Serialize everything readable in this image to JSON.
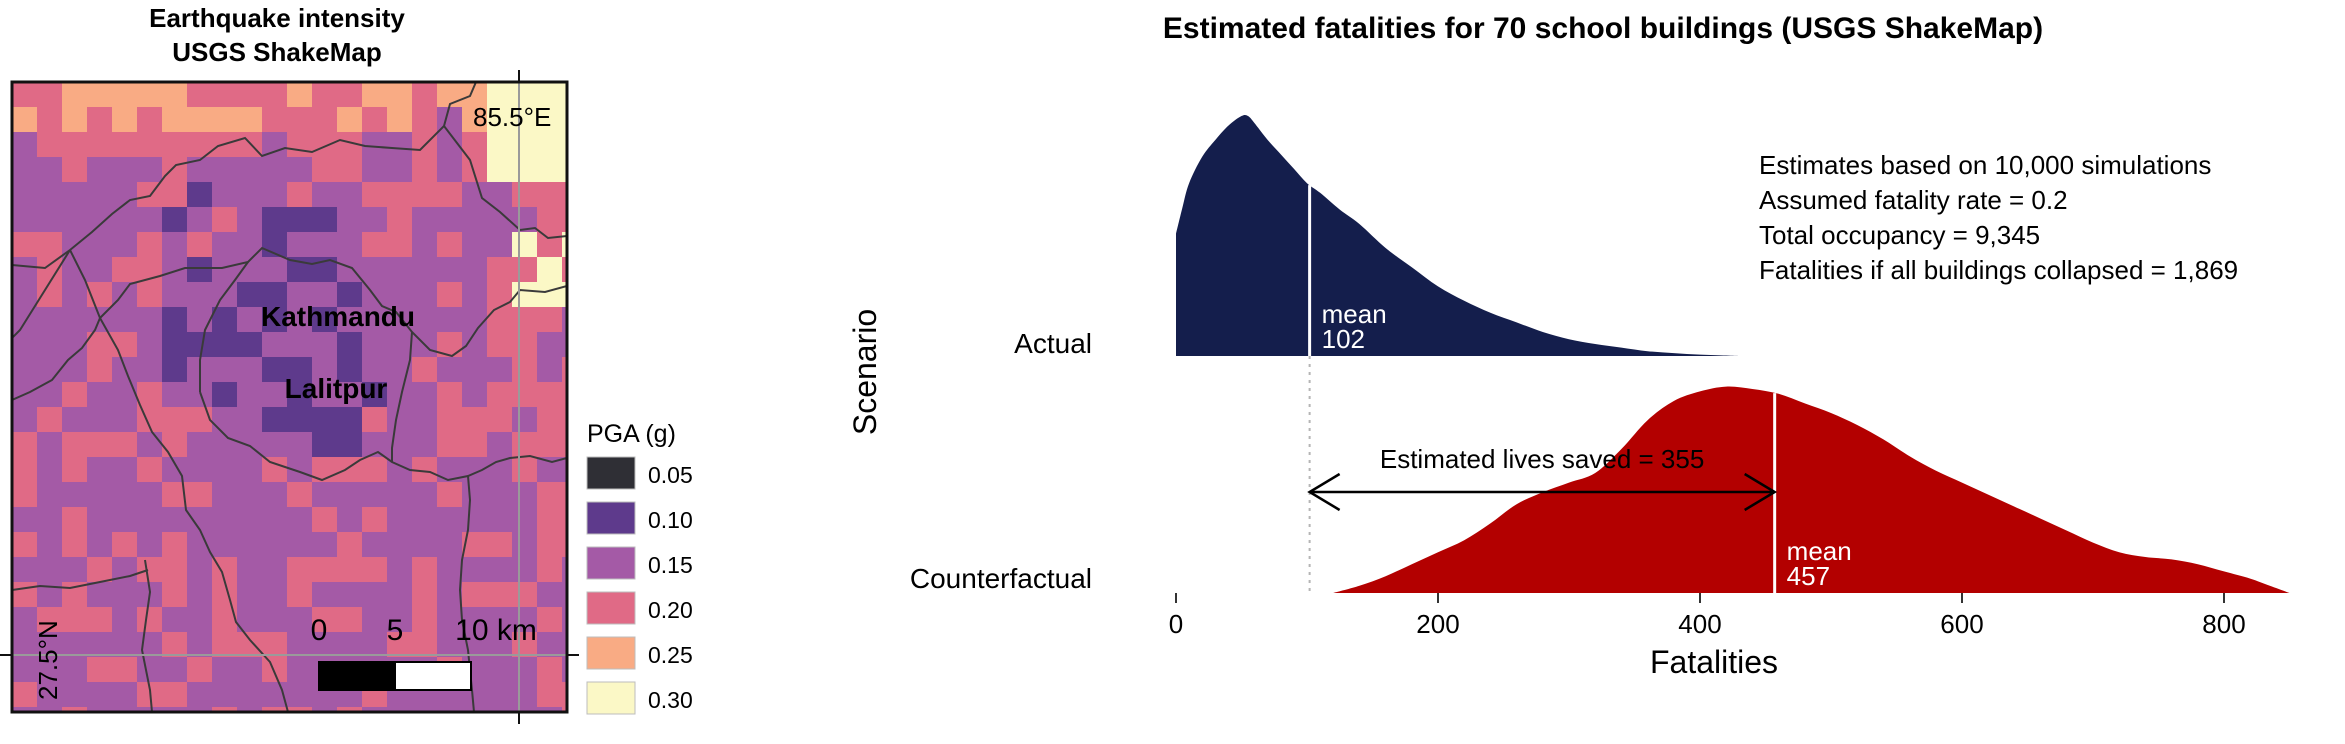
{
  "map": {
    "title_lines": [
      "Earthquake intensity",
      "USGS ShakeMap"
    ],
    "lon_label": "85.5°E",
    "lat_label": "27.5°N",
    "places": [
      {
        "name": "Kathmandu"
      },
      {
        "name": "Lalitpur"
      }
    ],
    "scalebar": {
      "ticks": [
        "0",
        "5",
        "10 km"
      ]
    },
    "legend": {
      "title": "PGA (g)",
      "items": [
        {
          "label": "0.05",
          "color": "#2f2f35"
        },
        {
          "label": "0.10",
          "color": "#5e3a8c"
        },
        {
          "label": "0.15",
          "color": "#a45aa6"
        },
        {
          "label": "0.20",
          "color": "#e06a86"
        },
        {
          "label": "0.25",
          "color": "#f9ab84"
        },
        {
          "label": "0.30",
          "color": "#fbf8c6"
        }
      ]
    }
  },
  "chart_data": {
    "type": "area",
    "title": "Estimated fatalities for 70 school buildings (USGS ShakeMap)",
    "xlabel": "Fatalities",
    "ylabel": "Scenario",
    "xlim": [
      0,
      850
    ],
    "xticks": [
      0,
      200,
      400,
      600,
      800
    ],
    "categories": [
      "Actual",
      "Counterfactual"
    ],
    "series": [
      {
        "name": "Actual",
        "color": "#141e4c",
        "mean": 102,
        "mean_prefix": "mean",
        "density": {
          "x": [
            0,
            5,
            10,
            20,
            30,
            40,
            50,
            55,
            60,
            70,
            80,
            90,
            100,
            110,
            125,
            140,
            160,
            180,
            200,
            220,
            240,
            260,
            280,
            300,
            320,
            340,
            360,
            380,
            400,
            420,
            430
          ],
          "y": [
            0.51,
            0.62,
            0.72,
            0.83,
            0.9,
            0.96,
            1.0,
            1.0,
            0.97,
            0.9,
            0.84,
            0.78,
            0.72,
            0.68,
            0.61,
            0.55,
            0.45,
            0.37,
            0.29,
            0.23,
            0.18,
            0.14,
            0.1,
            0.07,
            0.05,
            0.035,
            0.02,
            0.012,
            0.006,
            0.002,
            0
          ]
        }
      },
      {
        "name": "Counterfactual",
        "color": "#b30000",
        "mean": 457,
        "mean_prefix": "mean",
        "density": {
          "x": [
            120,
            140,
            160,
            180,
            200,
            220,
            240,
            260,
            280,
            300,
            320,
            340,
            360,
            380,
            400,
            420,
            440,
            460,
            480,
            500,
            520,
            540,
            560,
            580,
            600,
            620,
            640,
            660,
            680,
            700,
            720,
            740,
            760,
            780,
            800,
            820,
            835,
            850
          ],
          "y": [
            0,
            0.03,
            0.07,
            0.12,
            0.17,
            0.22,
            0.29,
            0.37,
            0.42,
            0.46,
            0.5,
            0.6,
            0.72,
            0.8,
            0.84,
            0.86,
            0.85,
            0.83,
            0.79,
            0.75,
            0.7,
            0.64,
            0.57,
            0.51,
            0.46,
            0.41,
            0.36,
            0.31,
            0.26,
            0.21,
            0.17,
            0.15,
            0.14,
            0.12,
            0.09,
            0.06,
            0.03,
            0
          ]
        }
      }
    ],
    "annotations": {
      "info_lines": [
        "Estimates based on 10,000 simulations",
        "Assumed fatality rate = 0.2",
        "Total occupancy = 9,345",
        "Fatalities if all buildings collapsed = 1,869"
      ],
      "lives_saved_label": "Estimated lives saved = 355",
      "lives_saved_from": 102,
      "lives_saved_to": 457
    }
  }
}
